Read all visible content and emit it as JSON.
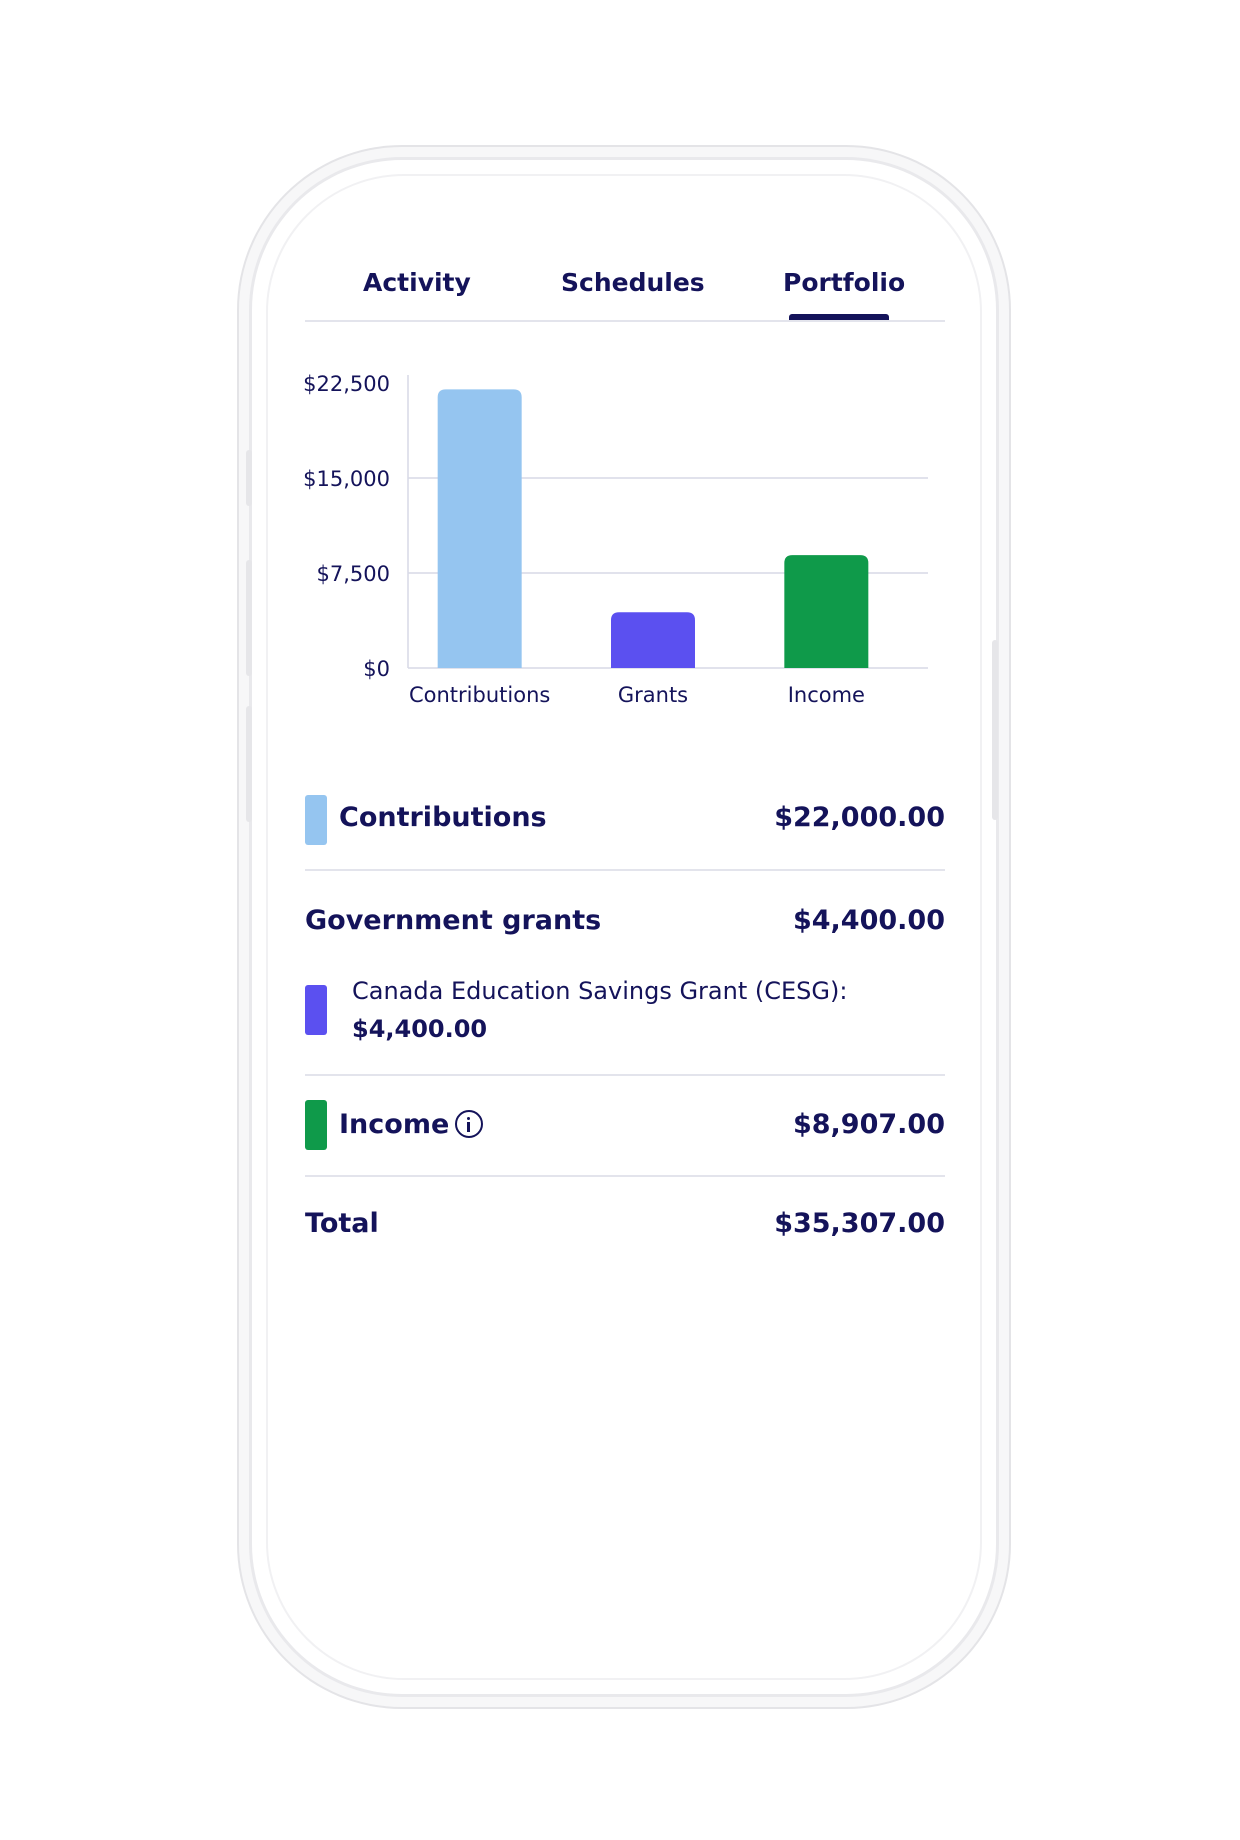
{
  "tabs": [
    {
      "label": "Activity"
    },
    {
      "label": "Schedules"
    },
    {
      "label": "Portfolio",
      "active": true
    }
  ],
  "chart_data": {
    "type": "bar",
    "categories": [
      "Contributions",
      "Grants",
      "Income"
    ],
    "values": [
      22000,
      4400,
      8907
    ],
    "colors": [
      "#95c5f0",
      "#5b50f0",
      "#0f9a4a"
    ],
    "yticks": [
      "$0",
      "$7,500",
      "$15,000",
      "$22,500"
    ],
    "ytick_values": [
      0,
      7500,
      15000,
      22500
    ],
    "ylim": [
      0,
      22500
    ],
    "grid": true
  },
  "summary": {
    "contributions": {
      "label": "Contributions",
      "amount": "$22,000.00",
      "color": "#95c5f0"
    },
    "grants": {
      "label": "Government grants",
      "amount": "$4,400.00",
      "item_label": "Canada Education Savings Grant (CESG):",
      "item_value": "$4,400.00",
      "color": "#5b50f0"
    },
    "income": {
      "label": "Income",
      "amount": "$8,907.00",
      "color": "#0f9a4a",
      "icon": "info-icon"
    },
    "total": {
      "label": "Total",
      "amount": "$35,307.00"
    }
  }
}
